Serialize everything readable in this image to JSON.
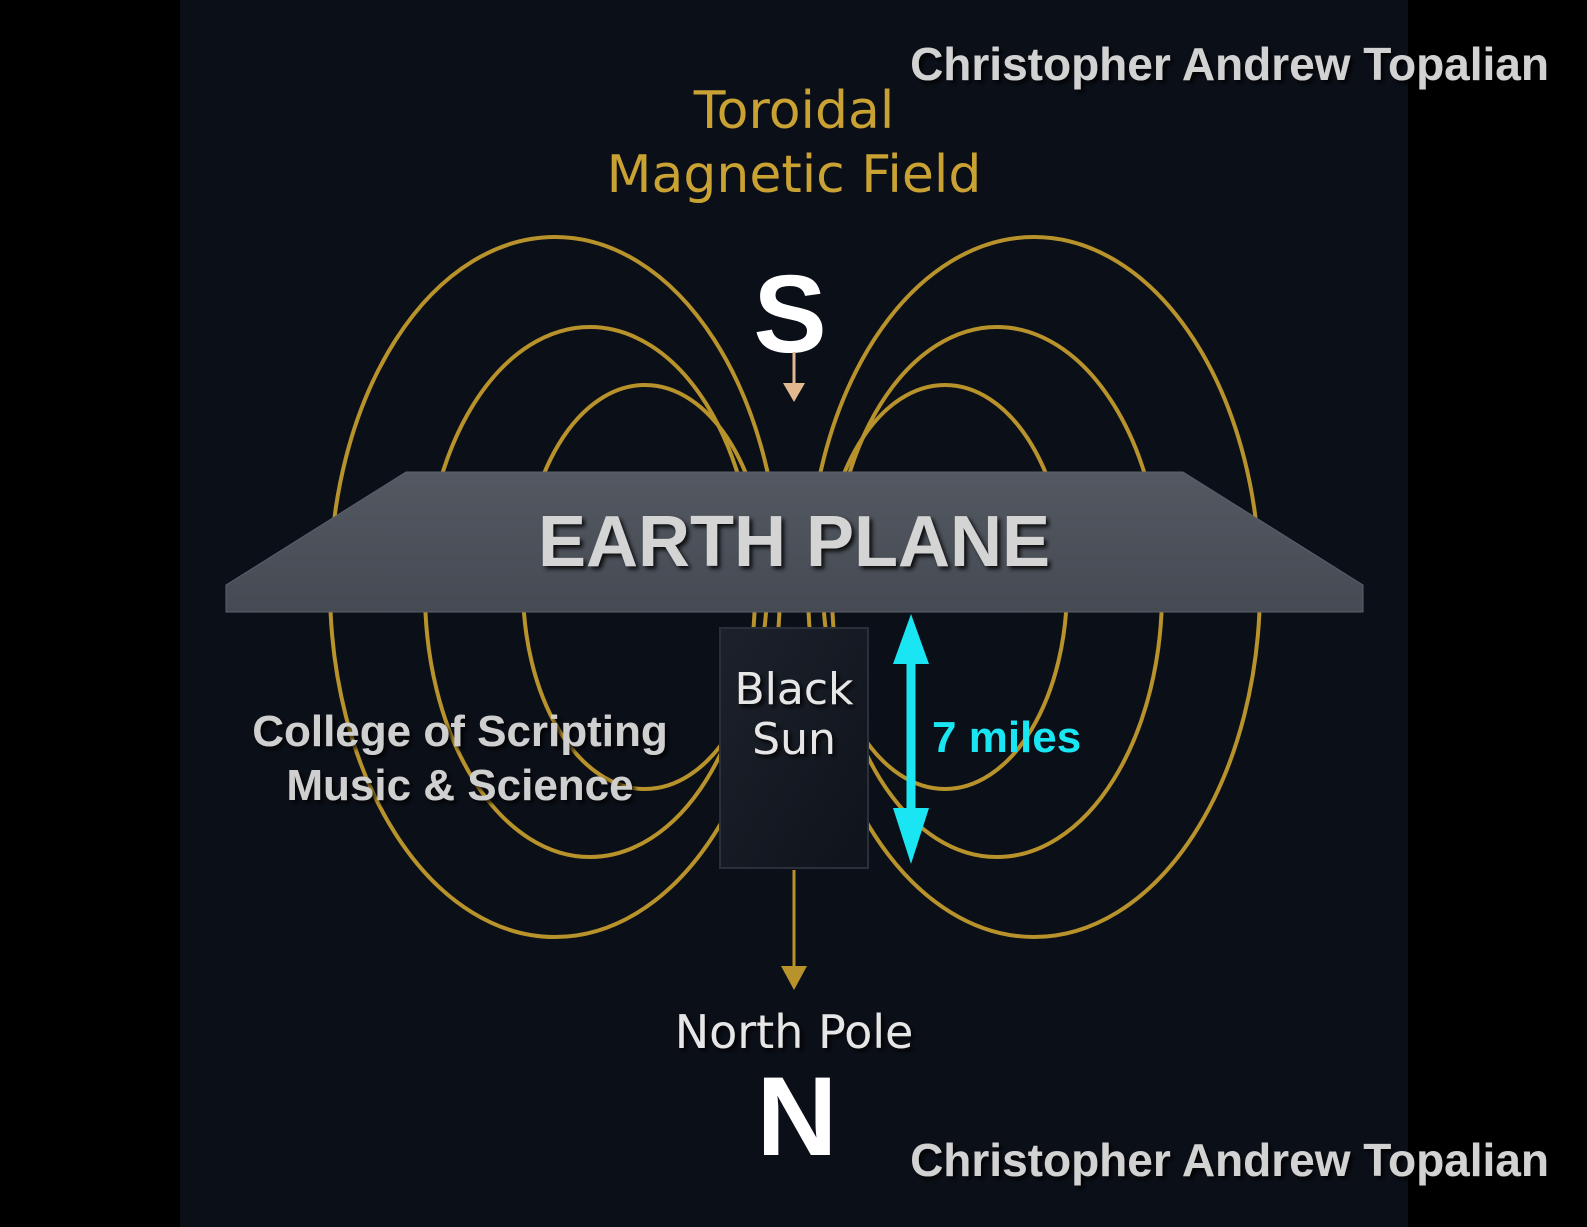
{
  "title": {
    "line1": "Toroidal",
    "line2": "Magnetic Field"
  },
  "pole_south": {
    "letter": "S"
  },
  "pole_north": {
    "label": "North Pole",
    "letter": "N"
  },
  "earth_plane": {
    "label": "EARTH PLANE"
  },
  "black_sun": {
    "line1": "Black",
    "line2": "Sun"
  },
  "distance": {
    "label": "7 miles"
  },
  "college": {
    "line1": "College of Scripting",
    "line2": "Music & Science"
  },
  "watermark": {
    "top": "Christopher Andrew Topalian",
    "bottom": "Christopher Andrew Topalian"
  },
  "colors": {
    "outer_background": "#000000",
    "panel_background": "#0b0f18",
    "field_lines": "#b8922a",
    "title_gold": "#c9a233",
    "plane_gray": "#4a4f58",
    "distance_cyan": "#19e6f2",
    "south_arrow": "#e2b98f",
    "watermark_gray": "#d2d2d2"
  },
  "icons": {
    "south_arrow": "arrow-down-icon",
    "north_arrow": "arrow-down-icon",
    "distance_arrow": "double-arrow-vertical-icon"
  }
}
